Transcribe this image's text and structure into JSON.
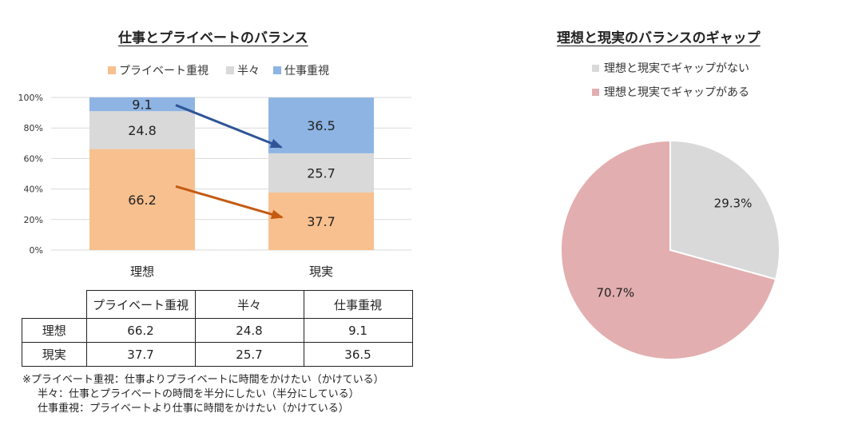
{
  "chart_data": [
    {
      "type": "bar",
      "stacked": true,
      "title": "仕事とプライベートのバランス",
      "categories": [
        "理想",
        "現実"
      ],
      "series": [
        {
          "name": "プライベート重視",
          "values": [
            66.2,
            37.7
          ],
          "color": "#f8c08e"
        },
        {
          "name": "半々",
          "values": [
            24.8,
            25.7
          ],
          "color": "#d9d9d9"
        },
        {
          "name": "仕事重視",
          "values": [
            9.1,
            36.5
          ],
          "color": "#8eb4e3"
        }
      ],
      "ylim": [
        0,
        100
      ],
      "yticks": [
        "0%",
        "20%",
        "40%",
        "60%",
        "80%",
        "100%"
      ],
      "grid": true,
      "legend": "top",
      "annotations": [
        {
          "type": "arrow",
          "from": "理想 仕事重視",
          "to": "現実 仕事重視",
          "color": "#2f5597"
        },
        {
          "type": "arrow",
          "from": "理想 プライベート重視",
          "to": "現実 プライベート重視",
          "color": "#c55a11"
        }
      ]
    },
    {
      "type": "pie",
      "title": "理想と現実のバランスのギャップ",
      "slices": [
        {
          "name": "理想と現実でギャップがない",
          "value": 29.3,
          "label": "29.3%",
          "color": "#d9d9d9"
        },
        {
          "name": "理想と現実でギャップがある",
          "value": 70.7,
          "label": "70.7%",
          "color": "#e3aeaf"
        }
      ],
      "legend": "top-left"
    }
  ],
  "table": {
    "headers": [
      "",
      "プライベート重視",
      "半々",
      "仕事重視"
    ],
    "rows": [
      [
        "理想",
        "66.2",
        "24.8",
        "9.1"
      ],
      [
        "現実",
        "37.7",
        "25.7",
        "36.5"
      ]
    ]
  },
  "notes": [
    "※プライベート重視：仕事よりプライベートに時間をかけたい（かけている）",
    "半々：仕事とプライベートの時間を半分にしたい（半分にしている）",
    "仕事重視：プライベートより仕事に時間をかけたい（かけている）"
  ]
}
